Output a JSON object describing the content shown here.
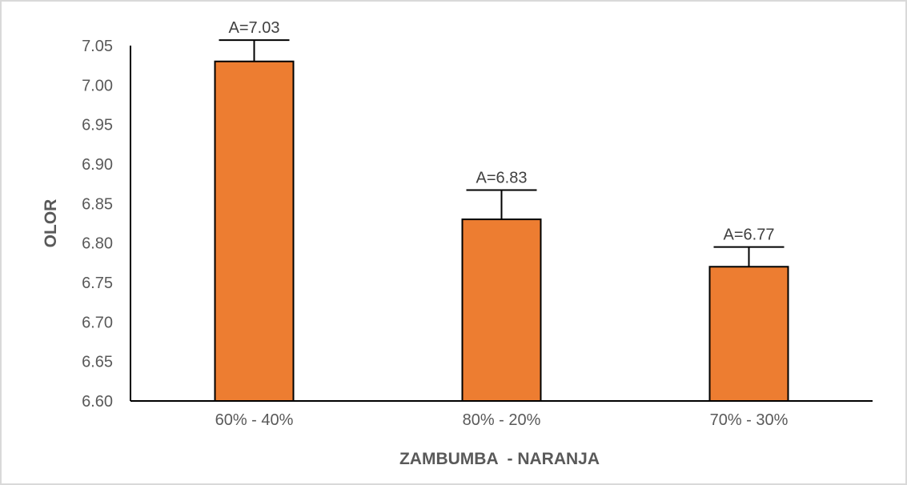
{
  "chart_data": {
    "type": "bar",
    "title": "",
    "xlabel": "ZAMBUMBA  - NARANJA",
    "ylabel": "OLOR",
    "categories": [
      "60% - 40%",
      "80% - 20%",
      "70% - 30%"
    ],
    "values": [
      7.03,
      6.83,
      6.77
    ],
    "error_plus": [
      0.027,
      0.037,
      0.025
    ],
    "data_labels": [
      "A=7.03",
      "A=6.83",
      "A=6.77"
    ],
    "ylim": [
      6.6,
      7.05
    ],
    "yticks": [
      "6.60",
      "6.65",
      "6.70",
      "6.75",
      "6.80",
      "6.85",
      "6.90",
      "6.95",
      "7.00",
      "7.05"
    ],
    "grid": false,
    "legend": "none",
    "colors": {
      "bar": "#ED7D31",
      "bar_border": "#000000",
      "axis": "#000000",
      "text": "#595959"
    }
  }
}
